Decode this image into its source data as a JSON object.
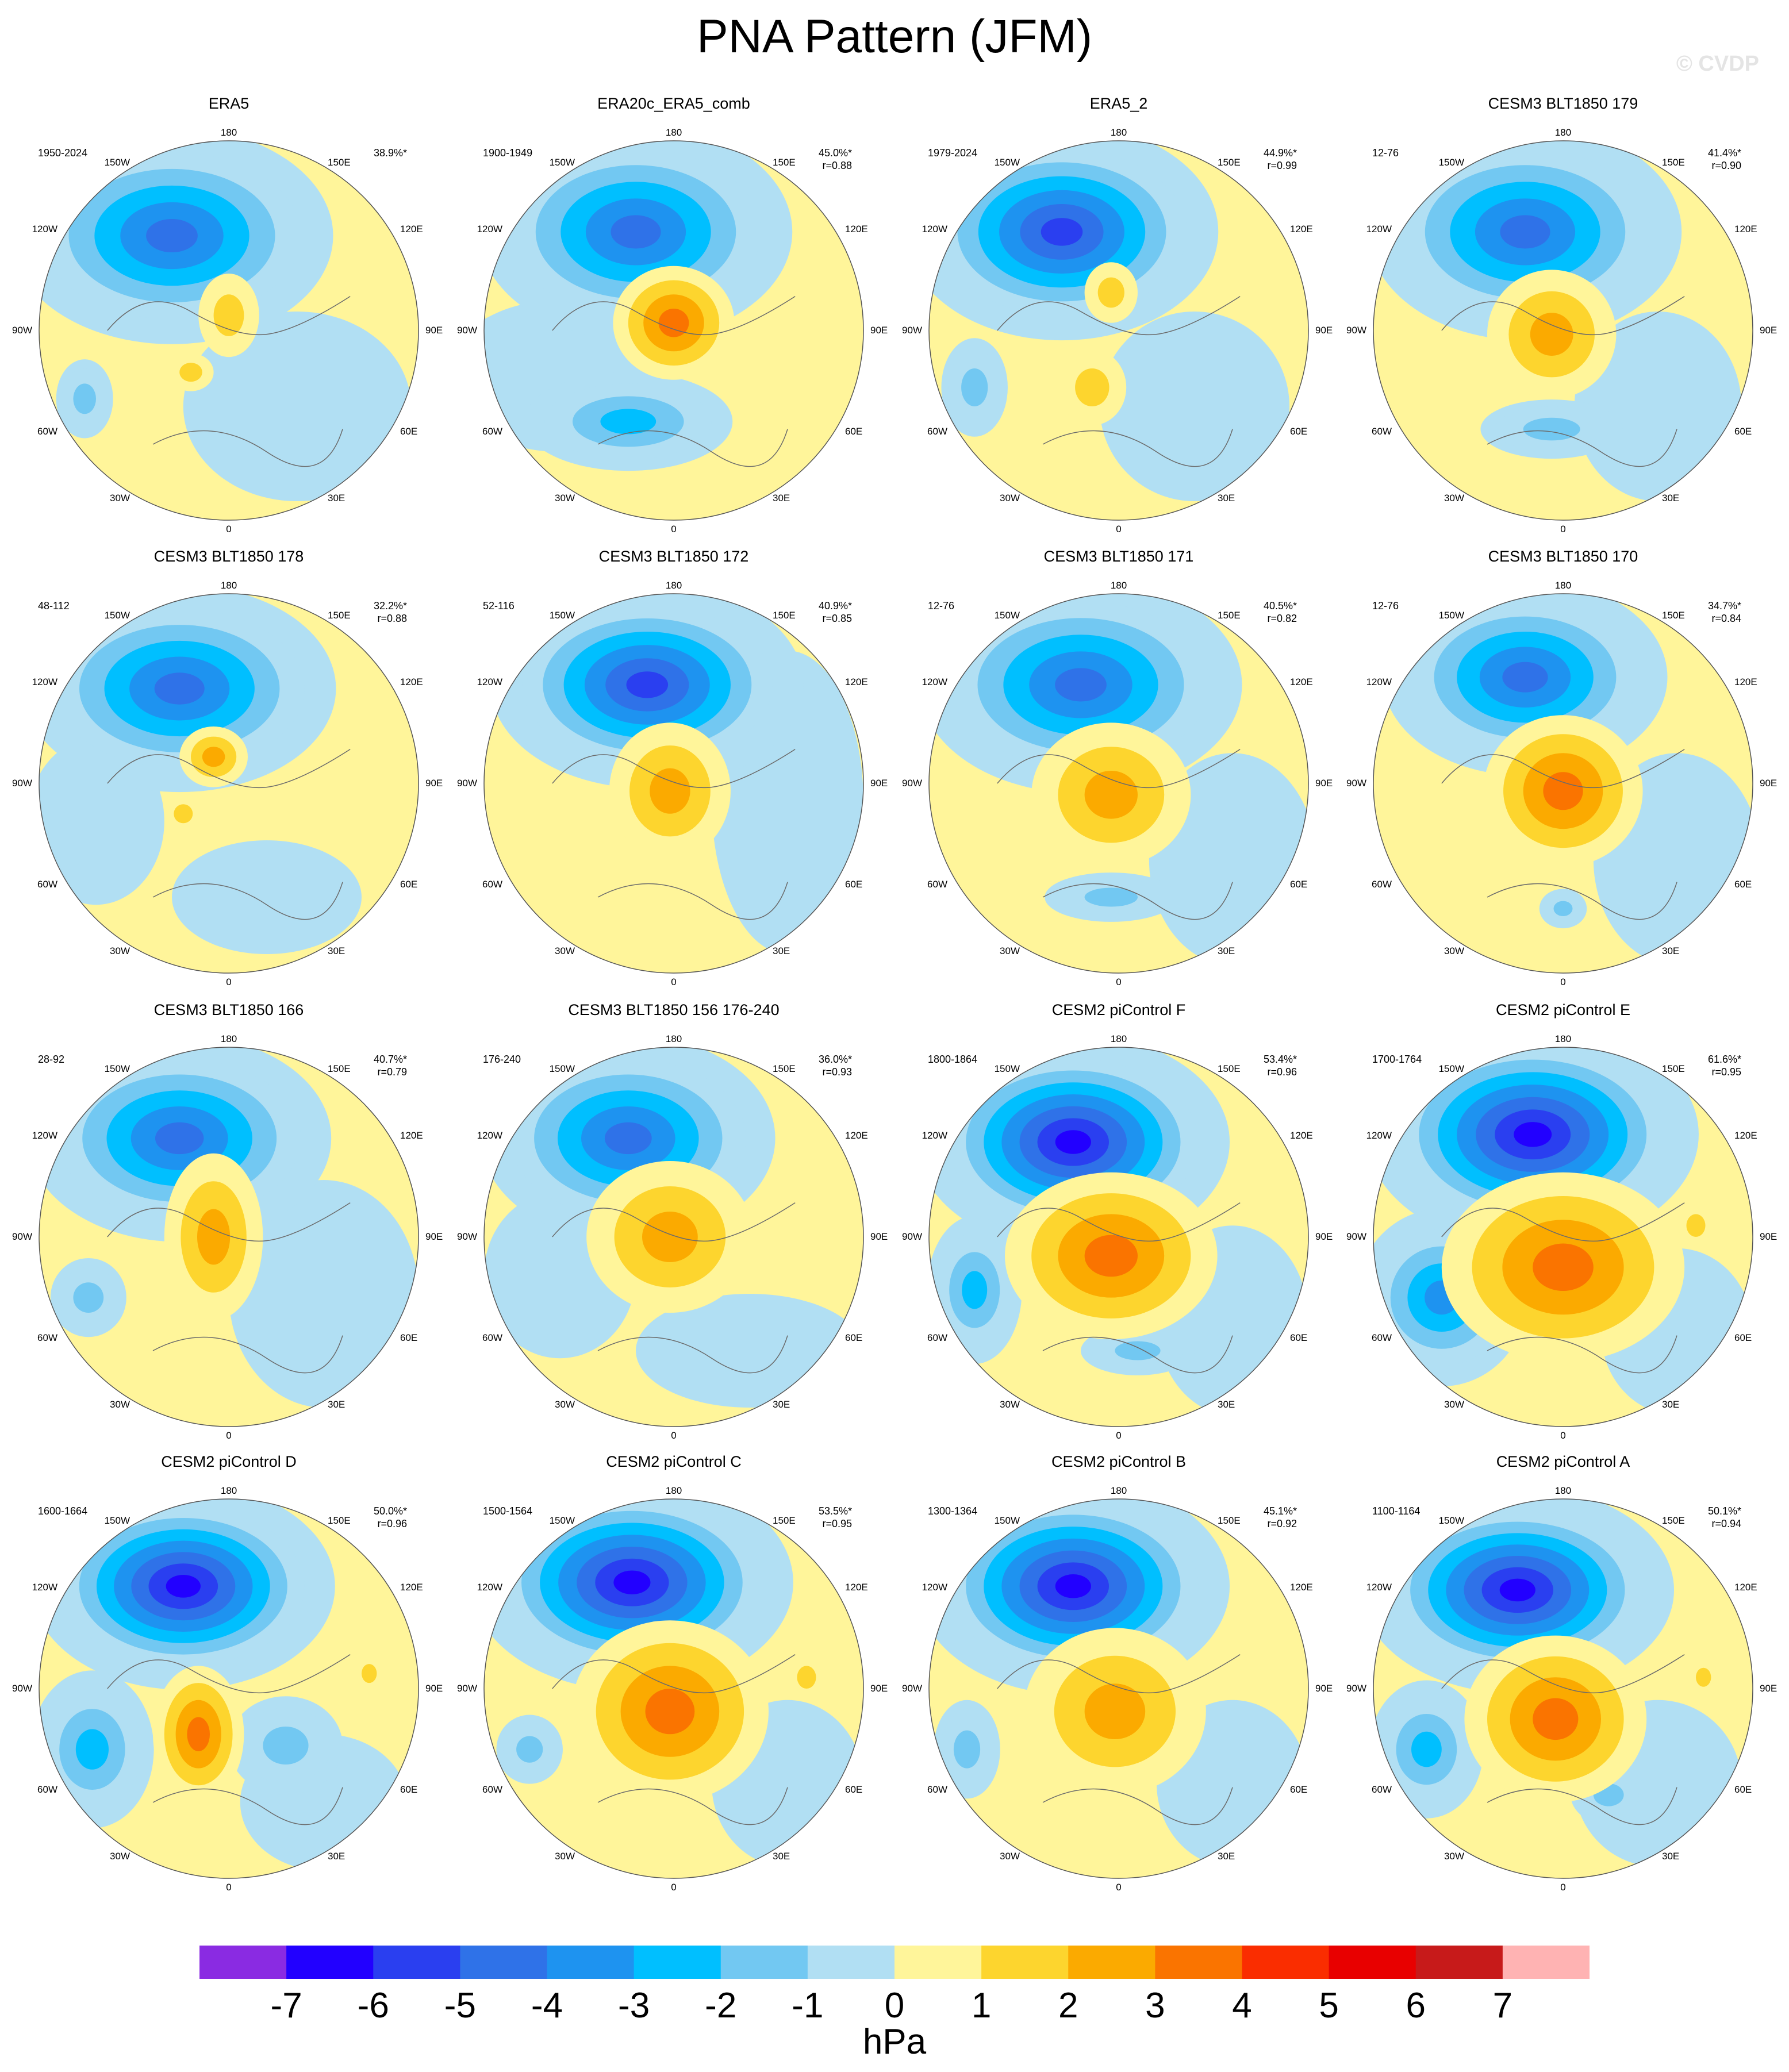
{
  "title": "PNA Pattern (JFM)",
  "credit": "© CVDP",
  "lon_labels": {
    "top": "180",
    "tl": "150W",
    "tr": "150E",
    "ul": "120W",
    "ur": "120E",
    "ml": "90W",
    "mr": "90E",
    "ll": "60W",
    "lr": "60E",
    "bl": "30W",
    "br": "30E",
    "bottom": "0"
  },
  "panels": [
    {
      "title": "ERA5",
      "period": "1950-2024",
      "pct": "38.9%*",
      "r": ""
    },
    {
      "title": "ERA20c_ERA5_comb",
      "period": "1900-1949",
      "pct": "45.0%*",
      "r": "r=0.88"
    },
    {
      "title": "ERA5_2",
      "period": "1979-2024",
      "pct": "44.9%*",
      "r": "r=0.99"
    },
    {
      "title": "CESM3 BLT1850 179",
      "period": "12-76",
      "pct": "41.4%*",
      "r": "r=0.90"
    },
    {
      "title": "CESM3 BLT1850 178",
      "period": "48-112",
      "pct": "32.2%*",
      "r": "r=0.88"
    },
    {
      "title": "CESM3 BLT1850 172",
      "period": "52-116",
      "pct": "40.9%*",
      "r": "r=0.85"
    },
    {
      "title": "CESM3 BLT1850 171",
      "period": "12-76",
      "pct": "40.5%*",
      "r": "r=0.82"
    },
    {
      "title": "CESM3 BLT1850 170",
      "period": "12-76",
      "pct": "34.7%*",
      "r": "r=0.84"
    },
    {
      "title": "CESM3 BLT1850 166",
      "period": "28-92",
      "pct": "40.7%*",
      "r": "r=0.79"
    },
    {
      "title": "CESM3 BLT1850 156 176-240",
      "period": "176-240",
      "pct": "36.0%*",
      "r": "r=0.93"
    },
    {
      "title": "CESM2 piControl F",
      "period": "1800-1864",
      "pct": "53.4%*",
      "r": "r=0.96"
    },
    {
      "title": "CESM2 piControl E",
      "period": "1700-1764",
      "pct": "61.6%*",
      "r": "r=0.95"
    },
    {
      "title": "CESM2 piControl D",
      "period": "1600-1664",
      "pct": "50.0%*",
      "r": "r=0.96"
    },
    {
      "title": "CESM2 piControl C",
      "period": "1500-1564",
      "pct": "53.5%*",
      "r": "r=0.95"
    },
    {
      "title": "CESM2 piControl B",
      "period": "1300-1364",
      "pct": "45.1%*",
      "r": "r=0.92"
    },
    {
      "title": "CESM2 piControl A",
      "period": "1100-1164",
      "pct": "50.1%*",
      "r": "r=0.94"
    }
  ],
  "colorbar": {
    "unit": "hPa",
    "ticks": [
      "-7",
      "-6",
      "-5",
      "-4",
      "-3",
      "-2",
      "-1",
      "0",
      "1",
      "2",
      "3",
      "4",
      "5",
      "6",
      "7"
    ],
    "colors": [
      "#8a2be2",
      "#2200ff",
      "#2a3ff0",
      "#2f72e8",
      "#1e93f0",
      "#00bfff",
      "#72c8f2",
      "#b1dff3",
      "#fff59a",
      "#fdd52e",
      "#fbaa00",
      "#fa7400",
      "#fa2d00",
      "#e80000",
      "#c71a1a",
      "#ffb3b3"
    ]
  },
  "map_fields": [
    {
      "neg": [
        [
          0.35,
          0.25,
          0.34,
          0.22,
          -4.3
        ],
        [
          0.12,
          0.68,
          0.06,
          0.08,
          -1.5
        ]
      ],
      "pos": [
        [
          0.5,
          0.46,
          0.08,
          0.11,
          1.6
        ],
        [
          0.4,
          0.61,
          0.06,
          0.05,
          1.5
        ]
      ],
      "bg": [
        [
          0.68,
          0.7,
          0.3,
          0.25,
          -1
        ]
      ]
    },
    {
      "neg": [
        [
          0.4,
          0.24,
          0.33,
          0.22,
          -4.4
        ],
        [
          0.38,
          0.74,
          0.22,
          0.1,
          -2.2
        ]
      ],
      "pos": [
        [
          0.5,
          0.48,
          0.16,
          0.15,
          3.3
        ]
      ],
      "bg": [
        [
          0.2,
          0.62,
          0.3,
          0.2,
          -1
        ]
      ]
    },
    {
      "neg": [
        [
          0.35,
          0.24,
          0.33,
          0.22,
          -5.3
        ],
        [
          0.12,
          0.65,
          0.07,
          0.1,
          -1.6
        ]
      ],
      "pos": [
        [
          0.48,
          0.4,
          0.07,
          0.08,
          1.5
        ],
        [
          0.43,
          0.65,
          0.09,
          0.1,
          1.6
        ]
      ],
      "bg": [
        [
          0.7,
          0.7,
          0.25,
          0.25,
          -1
        ]
      ]
    },
    {
      "neg": [
        [
          0.4,
          0.24,
          0.33,
          0.22,
          -4.3
        ],
        [
          0.47,
          0.76,
          0.15,
          0.06,
          -1.6
        ]
      ],
      "pos": [
        [
          0.47,
          0.51,
          0.17,
          0.17,
          2.4
        ]
      ],
      "bg": [
        [
          0.75,
          0.7,
          0.22,
          0.25,
          -1
        ]
      ]
    },
    {
      "neg": [
        [
          0.37,
          0.25,
          0.33,
          0.21,
          -4.3
        ]
      ],
      "pos": [
        [
          0.46,
          0.43,
          0.09,
          0.08,
          2.4
        ],
        [
          0.38,
          0.58,
          0.05,
          0.05,
          1.5
        ]
      ],
      "bg": [
        [
          0.15,
          0.6,
          0.18,
          0.22,
          -1
        ],
        [
          0.6,
          0.8,
          0.25,
          0.15,
          -1
        ]
      ]
    },
    {
      "neg": [
        [
          0.43,
          0.24,
          0.33,
          0.21,
          -5.2
        ]
      ],
      "pos": [
        [
          0.49,
          0.52,
          0.16,
          0.18,
          2.2
        ]
      ],
      "bg": [
        [
          0.8,
          0.55,
          0.2,
          0.4,
          -1
        ]
      ]
    },
    {
      "neg": [
        [
          0.4,
          0.24,
          0.34,
          0.22,
          -4.3
        ],
        [
          0.48,
          0.8,
          0.14,
          0.05,
          -1.5
        ]
      ],
      "pos": [
        [
          0.48,
          0.53,
          0.21,
          0.19,
          2.6
        ]
      ],
      "bg": [
        [
          0.8,
          0.7,
          0.22,
          0.28,
          -1
        ]
      ]
    },
    {
      "neg": [
        [
          0.4,
          0.22,
          0.3,
          0.2,
          -4.3
        ],
        [
          0.5,
          0.83,
          0.05,
          0.04,
          -1.5
        ]
      ],
      "pos": [
        [
          0.5,
          0.52,
          0.21,
          0.2,
          3.2
        ]
      ],
      "bg": [
        [
          0.8,
          0.7,
          0.22,
          0.28,
          -1
        ]
      ]
    },
    {
      "neg": [
        [
          0.37,
          0.24,
          0.32,
          0.21,
          -4.3
        ],
        [
          0.13,
          0.66,
          0.08,
          0.08,
          -1.5
        ]
      ],
      "pos": [
        [
          0.46,
          0.5,
          0.13,
          0.22,
          2.5
        ]
      ],
      "bg": [
        [
          0.75,
          0.65,
          0.25,
          0.3,
          -1
        ]
      ]
    },
    {
      "neg": [
        [
          0.38,
          0.24,
          0.31,
          0.21,
          -4.3
        ]
      ],
      "pos": [
        [
          0.49,
          0.5,
          0.22,
          0.2,
          2.4
        ]
      ],
      "bg": [
        [
          0.2,
          0.6,
          0.2,
          0.22,
          -1
        ],
        [
          0.7,
          0.8,
          0.3,
          0.15,
          -1
        ]
      ]
    },
    {
      "neg": [
        [
          0.38,
          0.25,
          0.33,
          0.22,
          -6.5
        ],
        [
          0.12,
          0.64,
          0.1,
          0.15,
          -2.2
        ],
        [
          0.55,
          0.8,
          0.12,
          0.05,
          -1.5
        ]
      ],
      "pos": [
        [
          0.48,
          0.55,
          0.28,
          0.22,
          3.1
        ]
      ],
      "bg": [
        [
          0.8,
          0.72,
          0.2,
          0.25,
          -1
        ]
      ]
    },
    {
      "neg": [
        [
          0.42,
          0.23,
          0.35,
          0.23,
          -6.6
        ],
        [
          0.18,
          0.66,
          0.18,
          0.18,
          -3.1
        ]
      ],
      "pos": [
        [
          0.5,
          0.58,
          0.32,
          0.25,
          3.9
        ],
        [
          0.85,
          0.47,
          0.05,
          0.06,
          1.5
        ]
      ],
      "bg": [
        [
          0.8,
          0.75,
          0.2,
          0.22,
          -1
        ]
      ]
    },
    {
      "neg": [
        [
          0.38,
          0.23,
          0.32,
          0.21,
          -6.3
        ],
        [
          0.14,
          0.66,
          0.13,
          0.16,
          -2.2
        ],
        [
          0.65,
          0.65,
          0.12,
          0.1,
          -1.5
        ]
      ],
      "pos": [
        [
          0.42,
          0.62,
          0.12,
          0.18,
          3.3
        ],
        [
          0.87,
          0.46,
          0.04,
          0.05,
          1.6
        ]
      ],
      "bg": [
        [
          0.75,
          0.8,
          0.22,
          0.18,
          -1
        ]
      ]
    },
    {
      "neg": [
        [
          0.39,
          0.22,
          0.34,
          0.22,
          -6.4
        ],
        [
          0.12,
          0.66,
          0.07,
          0.07,
          -1.6
        ]
      ],
      "pos": [
        [
          0.49,
          0.56,
          0.26,
          0.24,
          3.6
        ],
        [
          0.85,
          0.47,
          0.05,
          0.06,
          1.5
        ]
      ],
      "bg": [
        [
          0.8,
          0.75,
          0.2,
          0.22,
          -1
        ]
      ]
    },
    {
      "neg": [
        [
          0.38,
          0.23,
          0.33,
          0.22,
          -6.1
        ],
        [
          0.1,
          0.66,
          0.07,
          0.1,
          -1.6
        ]
      ],
      "pos": [
        [
          0.49,
          0.56,
          0.24,
          0.22,
          2.3
        ]
      ],
      "bg": [
        [
          0.8,
          0.75,
          0.2,
          0.22,
          -1
        ]
      ]
    },
    {
      "neg": [
        [
          0.38,
          0.24,
          0.33,
          0.21,
          -6.3
        ],
        [
          0.14,
          0.66,
          0.12,
          0.14,
          -2.2
        ],
        [
          0.62,
          0.78,
          0.08,
          0.06,
          -1.6
        ]
      ],
      "pos": [
        [
          0.48,
          0.58,
          0.24,
          0.22,
          3.2
        ],
        [
          0.87,
          0.47,
          0.04,
          0.05,
          1.6
        ]
      ],
      "bg": [
        [
          0.75,
          0.75,
          0.22,
          0.22,
          -1
        ]
      ]
    }
  ]
}
